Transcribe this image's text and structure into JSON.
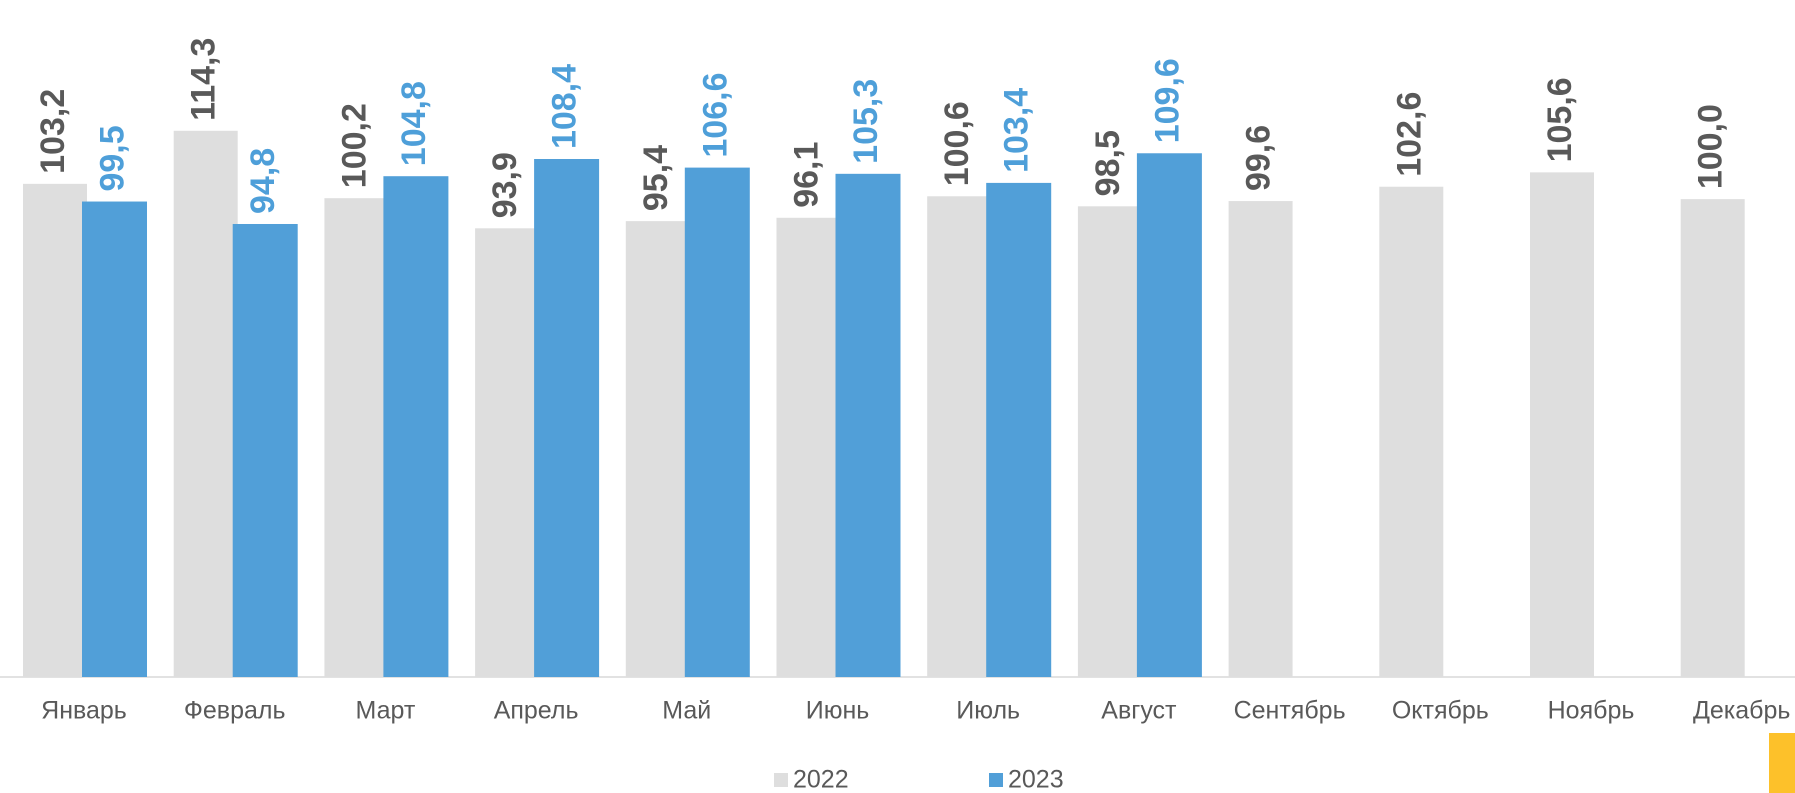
{
  "chart_data": {
    "type": "bar",
    "categories": [
      "Январь",
      "Февраль",
      "Март",
      "Апрель",
      "Май",
      "Июнь",
      "Июль",
      "Август",
      "Сентябрь",
      "Октябрь",
      "Ноябрь",
      "Декабрь"
    ],
    "series": [
      {
        "name": "2022",
        "color": "#dedede",
        "label_color": "#595959",
        "values": [
          103.2,
          114.3,
          100.2,
          93.9,
          95.4,
          96.1,
          100.6,
          98.5,
          99.6,
          102.6,
          105.6,
          100.0
        ],
        "value_labels": [
          "103,2",
          "114,3",
          "100,2",
          "93,9",
          "95,4",
          "96,1",
          "100,6",
          "98,5",
          "99,6",
          "102,6",
          "105,6",
          "100,0"
        ]
      },
      {
        "name": "2023",
        "color": "#519fd8",
        "label_color": "#4e9fd9",
        "values": [
          99.5,
          94.8,
          104.8,
          108.4,
          106.6,
          105.3,
          103.4,
          109.6,
          null,
          null,
          null,
          null
        ],
        "value_labels": [
          "99,5",
          "94,8",
          "104,8",
          "108,4",
          "106,6",
          "105,3",
          "103,4",
          "109,6",
          null,
          null,
          null,
          null
        ]
      }
    ],
    "ylim": [
      0,
      140
    ],
    "legend": "bottom"
  }
}
